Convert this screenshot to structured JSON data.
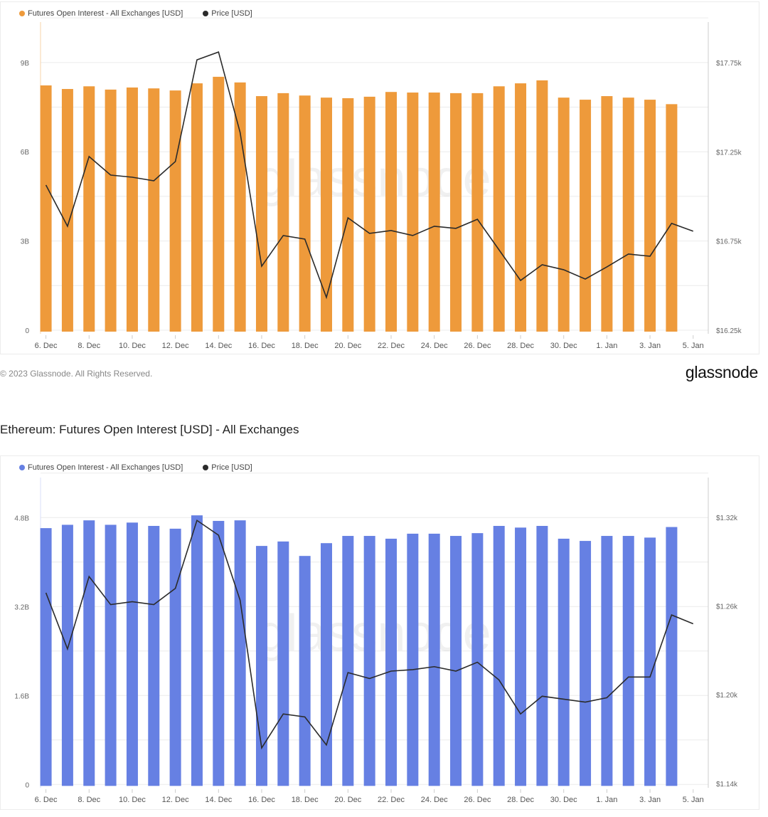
{
  "chart_data": [
    {
      "type": "bar+line",
      "title": "",
      "legend": [
        {
          "name": "Futures Open Interest - All Exchanges [USD]",
          "color": "#ee9a3b"
        },
        {
          "name": "Price [USD]",
          "color": "#2b2b2b"
        }
      ],
      "legend_placement": "top-left",
      "grid": true,
      "x_tick_labels": [
        "6. Dec",
        "8. Dec",
        "10. Dec",
        "12. Dec",
        "14. Dec",
        "16. Dec",
        "18. Dec",
        "20. Dec",
        "22. Dec",
        "24. Dec",
        "26. Dec",
        "28. Dec",
        "30. Dec",
        "1. Jan",
        "3. Jan",
        "5. Jan"
      ],
      "left_axis": {
        "ticks": [
          0,
          3,
          6,
          9
        ],
        "tick_labels": [
          "0",
          "3B",
          "6B",
          "9B"
        ],
        "range": [
          -0.12,
          10.36
        ],
        "unit": "B USD"
      },
      "right_axis": {
        "ticks": [
          16250,
          16750,
          17250,
          17750
        ],
        "tick_labels": [
          "$16.25k",
          "$16.75k",
          "$17.25k",
          "$17.75k"
        ],
        "range": [
          16230,
          17978
        ]
      },
      "dates": [
        "6 Dec",
        "7 Dec",
        "8 Dec",
        "9 Dec",
        "10 Dec",
        "11 Dec",
        "12 Dec",
        "13 Dec",
        "14 Dec",
        "15 Dec",
        "16 Dec",
        "17 Dec",
        "18 Dec",
        "19 Dec",
        "20 Dec",
        "21 Dec",
        "22 Dec",
        "23 Dec",
        "24 Dec",
        "25 Dec",
        "26 Dec",
        "27 Dec",
        "28 Dec",
        "29 Dec",
        "30 Dec",
        "31 Dec",
        "1 Jan",
        "2 Jan",
        "3 Jan",
        "4 Jan",
        "5 Jan"
      ],
      "open_interest_billion": [
        8.23,
        8.11,
        8.2,
        8.09,
        8.16,
        8.13,
        8.06,
        8.3,
        8.52,
        8.33,
        7.87,
        7.97,
        7.89,
        7.82,
        7.8,
        7.85,
        8.01,
        7.99,
        7.99,
        7.97,
        7.97,
        8.2,
        8.3,
        8.4,
        7.82,
        7.75,
        7.87,
        7.82,
        7.75,
        7.6,
        null
      ],
      "price": [
        17064,
        16833,
        17224,
        17120,
        17108,
        17088,
        17196,
        17766,
        17810,
        17359,
        16609,
        16781,
        16761,
        16434,
        16880,
        16793,
        16809,
        16781,
        16833,
        16821,
        16872,
        16701,
        16529,
        16617,
        16589,
        16537,
        16605,
        16677,
        16665,
        16849,
        16805
      ],
      "bar_color": "#ee9a3b",
      "line_color": "#2b2b2b",
      "watermark": "glassnode"
    },
    {
      "type": "bar+line",
      "title": "Ethereum: Futures Open Interest [USD] - All Exchanges",
      "legend": [
        {
          "name": "Futures Open Interest - All Exchanges [USD]",
          "color": "#6680e3"
        },
        {
          "name": "Price [USD]",
          "color": "#2b2b2b"
        }
      ],
      "legend_placement": "top-left",
      "grid": true,
      "x_tick_labels": [
        "6. Dec",
        "8. Dec",
        "10. Dec",
        "12. Dec",
        "14. Dec",
        "16. Dec",
        "18. Dec",
        "20. Dec",
        "22. Dec",
        "24. Dec",
        "26. Dec",
        "28. Dec",
        "30. Dec",
        "1. Jan",
        "3. Jan",
        "5. Jan"
      ],
      "left_axis": {
        "ticks": [
          0,
          1.6,
          3.2,
          4.8
        ],
        "tick_labels": [
          "0",
          "1.6B",
          "3.2B",
          "4.8B"
        ],
        "range": [
          -0.06,
          5.52
        ],
        "unit": "B USD"
      },
      "right_axis": {
        "ticks": [
          1140,
          1200,
          1260,
          1320
        ],
        "tick_labels": [
          "$1.14k",
          "$1.20k",
          "$1.26k",
          "$1.32k"
        ],
        "range": [
          1137,
          1347
        ]
      },
      "dates": [
        "6 Dec",
        "7 Dec",
        "8 Dec",
        "9 Dec",
        "10 Dec",
        "11 Dec",
        "12 Dec",
        "13 Dec",
        "14 Dec",
        "15 Dec",
        "16 Dec",
        "17 Dec",
        "18 Dec",
        "19 Dec",
        "20 Dec",
        "21 Dec",
        "22 Dec",
        "23 Dec",
        "24 Dec",
        "25 Dec",
        "26 Dec",
        "27 Dec",
        "28 Dec",
        "29 Dec",
        "30 Dec",
        "31 Dec",
        "1 Jan",
        "2 Jan",
        "3 Jan",
        "4 Jan",
        "5 Jan"
      ],
      "open_interest_billion": [
        4.61,
        4.67,
        4.75,
        4.67,
        4.71,
        4.65,
        4.6,
        4.84,
        4.74,
        4.75,
        4.29,
        4.37,
        4.11,
        4.34,
        4.47,
        4.47,
        4.42,
        4.51,
        4.51,
        4.47,
        4.52,
        4.65,
        4.62,
        4.65,
        4.42,
        4.38,
        4.47,
        4.47,
        4.44,
        4.63,
        null
      ],
      "price": [
        1269,
        1231,
        1280,
        1261,
        1263,
        1261,
        1272,
        1318,
        1308,
        1264,
        1164,
        1187,
        1185,
        1166,
        1215,
        1211,
        1216,
        1217,
        1219,
        1216,
        1222,
        1210,
        1187,
        1199,
        1197,
        1195,
        1198,
        1212,
        1212,
        1254,
        1248
      ],
      "bar_color": "#6680e3",
      "line_color": "#2b2b2b",
      "watermark": "glassnode"
    }
  ],
  "footer": {
    "copyright": "© 2023 Glassnode. All Rights Reserved.",
    "logo": "glassnode"
  }
}
